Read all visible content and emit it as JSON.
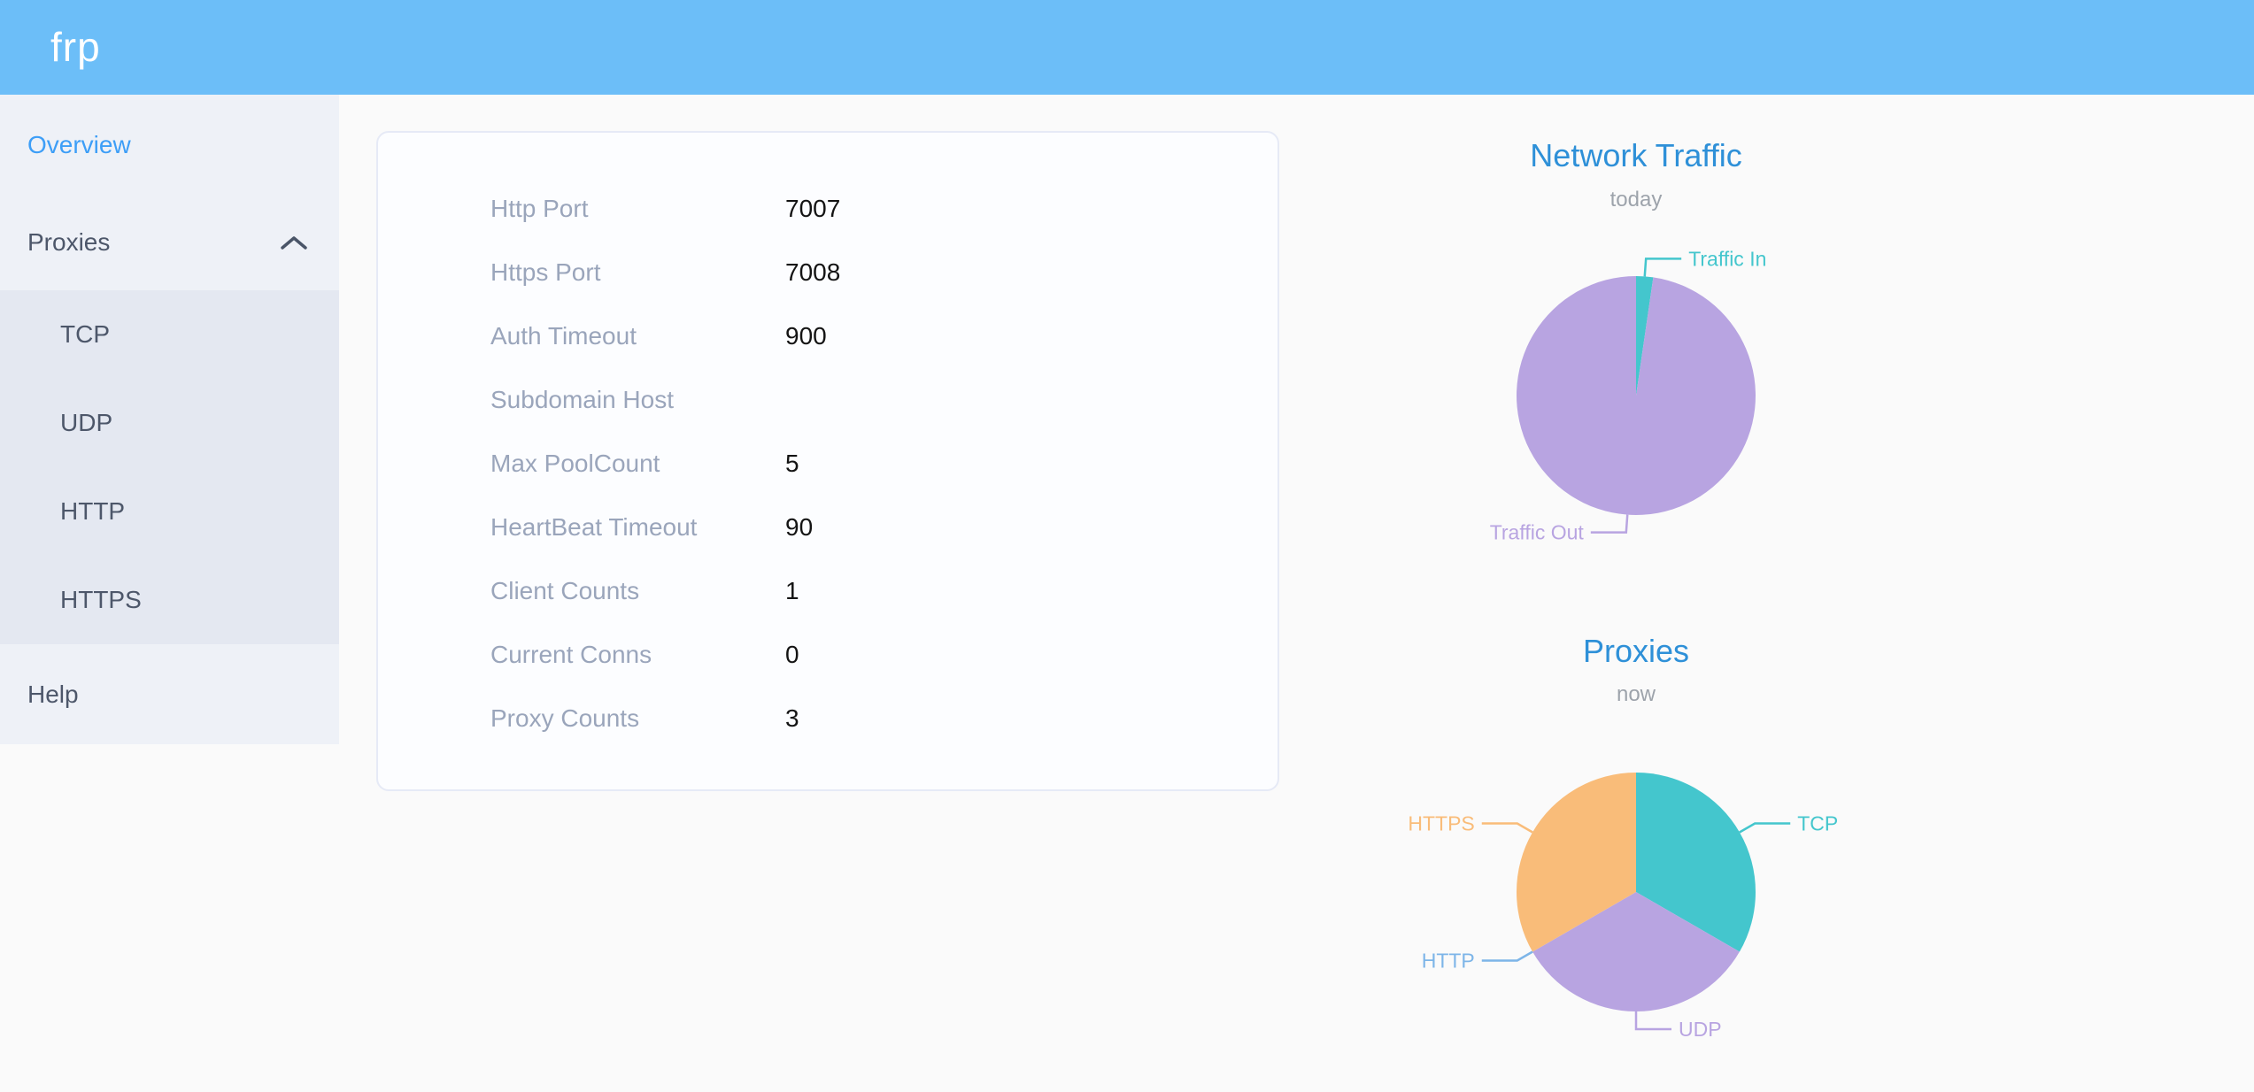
{
  "header": {
    "logo": "frp"
  },
  "sidebar": {
    "items": [
      {
        "label": "Overview",
        "active": true
      },
      {
        "label": "Proxies",
        "expanded": true,
        "children": [
          "TCP",
          "UDP",
          "HTTP",
          "HTTPS"
        ]
      },
      {
        "label": "Help"
      }
    ]
  },
  "server_info": {
    "rows": [
      {
        "label": "Http Port",
        "value": "7007"
      },
      {
        "label": "Https Port",
        "value": "7008"
      },
      {
        "label": "Auth Timeout",
        "value": "900"
      },
      {
        "label": "Subdomain Host",
        "value": ""
      },
      {
        "label": "Max PoolCount",
        "value": "5"
      },
      {
        "label": "HeartBeat Timeout",
        "value": "90"
      },
      {
        "label": "Client Counts",
        "value": "1"
      },
      {
        "label": "Current Conns",
        "value": "0"
      },
      {
        "label": "Proxy Counts",
        "value": "3"
      }
    ]
  },
  "chart_data": [
    {
      "type": "pie",
      "title": "Network Traffic",
      "subtitle": "today",
      "legend_position": "callout-labels",
      "slices": [
        {
          "name": "Traffic In",
          "value": 2.3,
          "color": "#44c6cd"
        },
        {
          "name": "Traffic Out",
          "value": 97.7,
          "color": "#b8a4e1"
        }
      ]
    },
    {
      "type": "pie",
      "title": "Proxies",
      "subtitle": "now",
      "legend_position": "callout-labels",
      "slices": [
        {
          "name": "TCP",
          "value": 1,
          "color": "#44c6cd"
        },
        {
          "name": "UDP",
          "value": 1,
          "color": "#b8a4e1"
        },
        {
          "name": "HTTP",
          "value": 0,
          "color": "#7db5e8"
        },
        {
          "name": "HTTPS",
          "value": 1,
          "color": "#f9bc79"
        }
      ]
    }
  ]
}
